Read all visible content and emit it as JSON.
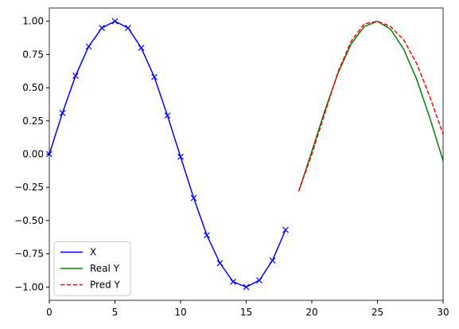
{
  "chart_data": {
    "type": "line",
    "series": [
      {
        "name": "X",
        "color": "#0000ff",
        "linestyle": "solid",
        "marker": "x",
        "x": [
          0,
          1,
          2,
          3,
          4,
          5,
          6,
          7,
          8,
          9,
          10,
          11,
          12,
          13,
          14,
          15,
          16,
          17,
          18
        ],
        "values": [
          0,
          0.31,
          0.59,
          0.81,
          0.95,
          1.0,
          0.95,
          0.8,
          0.58,
          0.29,
          -0.02,
          -0.33,
          -0.61,
          -0.82,
          -0.96,
          -1.0,
          -0.95,
          -0.8,
          -0.57
        ]
      },
      {
        "name": "Real Y",
        "color": "#008000",
        "linestyle": "solid",
        "x": [
          19,
          20,
          21,
          22,
          23,
          24,
          25,
          26,
          27,
          28,
          29,
          30
        ],
        "values": [
          -0.28,
          0.02,
          0.33,
          0.61,
          0.83,
          0.96,
          1.0,
          0.94,
          0.79,
          0.56,
          0.27,
          -0.05
        ]
      },
      {
        "name": "Pred Y",
        "color": "#ff0000",
        "linestyle": "dashed",
        "x": [
          19,
          20,
          21,
          22,
          23,
          24,
          25,
          26,
          27,
          28,
          29,
          30
        ],
        "values": [
          -0.28,
          0.0,
          0.31,
          0.62,
          0.85,
          0.98,
          1.0,
          0.96,
          0.86,
          0.68,
          0.43,
          0.15
        ]
      }
    ],
    "xlim": [
      0,
      30
    ],
    "xticks": [
      0,
      5,
      10,
      15,
      20,
      25,
      30
    ],
    "ylim": [
      -1.1,
      1.1
    ],
    "yticks": [
      {
        "value": -1,
        "label": "−1.00"
      },
      {
        "value": -0.75,
        "label": "−0.75"
      },
      {
        "value": -0.5,
        "label": "−0.50"
      },
      {
        "value": -0.25,
        "label": "−0.25"
      },
      {
        "value": 0,
        "label": "0.00"
      },
      {
        "value": 0.25,
        "label": "0.25"
      },
      {
        "value": 0.5,
        "label": "0.50"
      },
      {
        "value": 0.75,
        "label": "0.75"
      },
      {
        "value": 1,
        "label": "1.00"
      }
    ],
    "legend": "lower left"
  }
}
